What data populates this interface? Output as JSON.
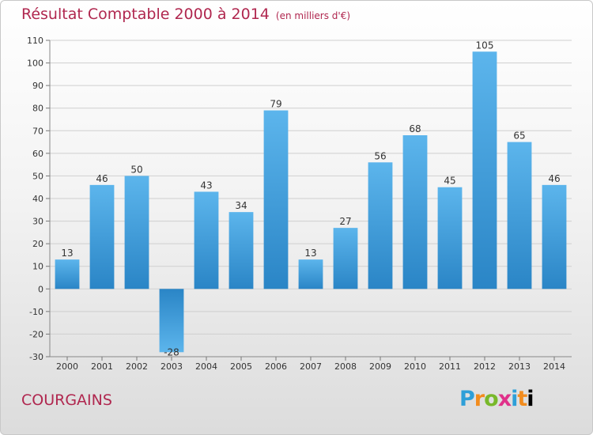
{
  "header": {
    "title": "Résultat Comptable 2000 à 2014",
    "subtitle": "(en milliers d'€)"
  },
  "footer": {
    "place": "COURGAINS",
    "logo": "Proxiti"
  },
  "colors": {
    "title": "#b0274f",
    "bar_light": "#5cb5ec",
    "bar_dark": "#2a85c6",
    "grid": "#cccccc"
  },
  "chart_data": {
    "type": "bar",
    "title": "Résultat Comptable 2000 à 2014",
    "subtitle": "(en milliers d'€)",
    "xlabel": "",
    "ylabel": "",
    "categories": [
      "2000",
      "2001",
      "2002",
      "2003",
      "2004",
      "2005",
      "2006",
      "2007",
      "2008",
      "2009",
      "2010",
      "2011",
      "2012",
      "2013",
      "2014"
    ],
    "values": [
      13,
      46,
      50,
      -28,
      43,
      34,
      79,
      13,
      27,
      56,
      68,
      45,
      105,
      65,
      46
    ],
    "ylim": [
      -30,
      110
    ],
    "yticks": [
      -30,
      -20,
      -10,
      0,
      10,
      20,
      30,
      40,
      50,
      60,
      70,
      80,
      90,
      100,
      110
    ],
    "grid": true,
    "legend": "none"
  }
}
